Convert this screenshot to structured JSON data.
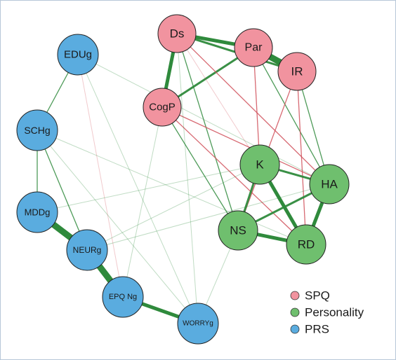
{
  "groups": [
    {
      "key": "SPQ",
      "label": "SPQ",
      "color": "#f1939f"
    },
    {
      "key": "Personality",
      "label": "Personality",
      "color": "#6fbf6e"
    },
    {
      "key": "PRS",
      "label": "PRS",
      "color": "#5aacdf"
    }
  ],
  "nodes": [
    {
      "id": "Ds",
      "label": "Ds",
      "group": "SPQ"
    },
    {
      "id": "Par",
      "label": "Par",
      "group": "SPQ"
    },
    {
      "id": "IR",
      "label": "IR",
      "group": "SPQ"
    },
    {
      "id": "CogP",
      "label": "CogP",
      "group": "SPQ"
    },
    {
      "id": "K",
      "label": "K",
      "group": "Personality"
    },
    {
      "id": "HA",
      "label": "HA",
      "group": "Personality"
    },
    {
      "id": "NS",
      "label": "NS",
      "group": "Personality"
    },
    {
      "id": "RD",
      "label": "RD",
      "group": "Personality"
    },
    {
      "id": "EDUg",
      "label": "EDUg",
      "group": "PRS"
    },
    {
      "id": "SCHg",
      "label": "SCHg",
      "group": "PRS"
    },
    {
      "id": "MDDg",
      "label": "MDDg",
      "group": "PRS"
    },
    {
      "id": "NEURg",
      "label": "NEURg",
      "group": "PRS"
    },
    {
      "id": "EPQNg",
      "label": "EPQ Ng",
      "group": "PRS"
    },
    {
      "id": "WORRYg",
      "label": "WORRYg",
      "group": "PRS"
    }
  ],
  "edges": [
    {
      "source": "Par",
      "target": "IR",
      "sign": "positive",
      "strength": "very strong"
    },
    {
      "source": "Ds",
      "target": "CogP",
      "sign": "positive",
      "strength": "strong"
    },
    {
      "source": "Ds",
      "target": "Par",
      "sign": "positive",
      "strength": "strong"
    },
    {
      "source": "Ds",
      "target": "IR",
      "sign": "positive",
      "strength": "medium"
    },
    {
      "source": "Par",
      "target": "CogP",
      "sign": "positive",
      "strength": "medium"
    },
    {
      "source": "Ds",
      "target": "NS",
      "sign": "positive",
      "strength": "weak"
    },
    {
      "source": "Ds",
      "target": "HA",
      "sign": "negative",
      "strength": "weak"
    },
    {
      "source": "Ds",
      "target": "K",
      "sign": "negative",
      "strength": "very weak"
    },
    {
      "source": "Par",
      "target": "K",
      "sign": "negative",
      "strength": "weak"
    },
    {
      "source": "Par",
      "target": "HA",
      "sign": "positive",
      "strength": "weak"
    },
    {
      "source": "IR",
      "target": "HA",
      "sign": "positive",
      "strength": "weak"
    },
    {
      "source": "IR",
      "target": "RD",
      "sign": "negative",
      "strength": "weak"
    },
    {
      "source": "IR",
      "target": "NS",
      "sign": "negative",
      "strength": "weak"
    },
    {
      "source": "CogP",
      "target": "HA",
      "sign": "negative",
      "strength": "weak"
    },
    {
      "source": "CogP",
      "target": "RD",
      "sign": "negative",
      "strength": "weak"
    },
    {
      "source": "CogP",
      "target": "NS",
      "sign": "positive",
      "strength": "weak"
    },
    {
      "source": "K",
      "target": "HA",
      "sign": "positive",
      "strength": "medium"
    },
    {
      "source": "K",
      "target": "RD",
      "sign": "positive",
      "strength": "strong"
    },
    {
      "source": "K",
      "target": "NS",
      "sign": "positive",
      "strength": "medium"
    },
    {
      "source": "HA",
      "target": "RD",
      "sign": "positive",
      "strength": "strong"
    },
    {
      "source": "HA",
      "target": "NS",
      "sign": "positive",
      "strength": "medium"
    },
    {
      "source": "NS",
      "target": "RD",
      "sign": "positive",
      "strength": "strong"
    },
    {
      "source": "EDUg",
      "target": "SCHg",
      "sign": "positive",
      "strength": "weak"
    },
    {
      "source": "SCHg",
      "target": "MDDg",
      "sign": "positive",
      "strength": "weak"
    },
    {
      "source": "SCHg",
      "target": "NEURg",
      "sign": "positive",
      "strength": "weak"
    },
    {
      "source": "MDDg",
      "target": "NEURg",
      "sign": "positive",
      "strength": "very strong"
    },
    {
      "source": "NEURg",
      "target": "EPQNg",
      "sign": "positive",
      "strength": "very strong"
    },
    {
      "source": "EPQNg",
      "target": "WORRYg",
      "sign": "positive",
      "strength": "strong"
    },
    {
      "source": "EDUg",
      "target": "HA",
      "sign": "positive",
      "strength": "very weak"
    },
    {
      "source": "EDUg",
      "target": "EPQNg",
      "sign": "negative",
      "strength": "very weak"
    },
    {
      "source": "EDUg",
      "target": "WORRYg",
      "sign": "positive",
      "strength": "very weak"
    },
    {
      "source": "SCHg",
      "target": "WORRYg",
      "sign": "positive",
      "strength": "very weak"
    },
    {
      "source": "SCHg",
      "target": "RD",
      "sign": "positive",
      "strength": "very weak"
    },
    {
      "source": "MDDg",
      "target": "K",
      "sign": "positive",
      "strength": "very weak"
    },
    {
      "source": "NEURg",
      "target": "K",
      "sign": "positive",
      "strength": "very weak"
    },
    {
      "source": "NEURg",
      "target": "HA",
      "sign": "positive",
      "strength": "very weak"
    },
    {
      "source": "EPQNg",
      "target": "CogP",
      "sign": "positive",
      "strength": "very weak"
    },
    {
      "source": "WORRYg",
      "target": "NS",
      "sign": "positive",
      "strength": "very weak"
    },
    {
      "source": "WORRYg",
      "target": "Ds",
      "sign": "positive",
      "strength": "very weak"
    }
  ]
}
